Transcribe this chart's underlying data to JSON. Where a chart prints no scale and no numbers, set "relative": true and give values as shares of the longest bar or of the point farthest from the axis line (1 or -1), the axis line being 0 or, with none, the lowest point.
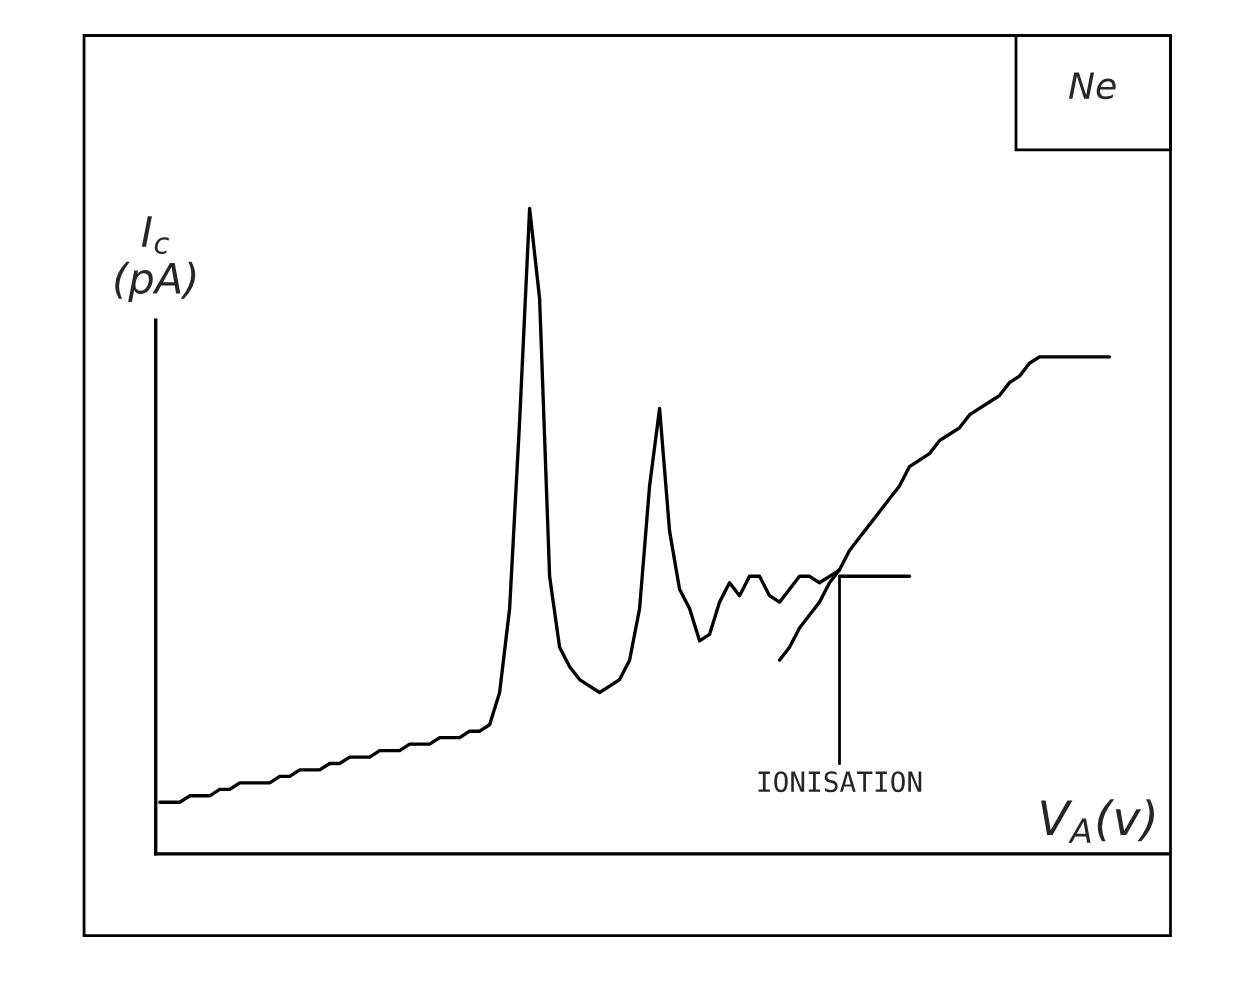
{
  "chart_data": {
    "type": "line",
    "title": "Ne",
    "xlabel": "V$_{A}$(v)",
    "ylabel": "I$_{c}$\n(pA)",
    "relative": true,
    "grid": false,
    "legend": false,
    "marker": "none",
    "line_style": "solid",
    "categories": [
      null,
      null,
      null,
      null,
      null,
      null,
      null,
      null,
      null,
      null,
      null,
      null,
      null,
      null,
      null,
      null,
      null,
      null,
      null,
      null,
      null,
      null,
      null,
      null,
      null,
      null,
      null,
      null,
      null,
      null,
      null,
      null,
      null,
      null,
      null,
      null,
      null,
      null,
      null,
      null,
      null,
      null,
      null,
      null,
      null,
      null,
      null,
      null,
      null,
      null,
      null,
      null,
      null,
      null,
      null,
      null,
      null,
      null,
      null,
      null,
      null,
      null,
      null,
      null,
      null,
      null,
      null,
      null,
      null,
      null,
      null,
      null,
      null,
      null,
      null,
      null,
      null,
      null,
      null,
      null,
      null,
      null,
      null,
      null,
      null,
      null,
      null,
      null,
      null,
      null,
      null,
      null,
      null,
      null,
      null,
      null
    ],
    "series": [
      {
        "color": "#000000",
        "values": [
          0.08,
          0.08,
          0.08,
          0.09,
          0.09,
          0.09,
          0.1,
          0.1,
          0.11,
          0.11,
          0.11,
          0.11,
          0.12,
          0.12,
          0.13,
          0.13,
          0.13,
          0.14,
          0.14,
          0.15,
          0.15,
          0.15,
          0.16,
          0.16,
          0.16,
          0.17,
          0.17,
          0.17,
          0.18,
          0.18,
          0.18,
          0.19,
          0.19,
          0.2,
          0.25,
          0.38,
          0.67,
          1,
          0.86,
          0.43,
          0.32,
          0.29,
          0.27,
          0.26,
          0.25,
          0.26,
          0.27,
          0.3,
          0.38,
          0.57,
          0.69,
          0.5,
          0.41,
          0.38,
          0.33,
          0.34,
          0.39,
          0.42,
          0.4,
          0.43,
          0.43,
          0.4,
          0.39,
          0.41,
          0.43,
          0.43,
          0.42,
          0.43,
          0.44,
          0.47,
          0.49,
          0.51,
          0.53,
          0.55,
          0.57,
          0.6,
          0.61,
          0.62,
          0.64,
          0.65,
          0.66,
          0.68,
          0.69,
          0.7,
          0.71,
          0.73,
          0.74,
          0.76,
          0.77,
          0.77,
          0.77,
          0.77,
          0.77,
          0.77,
          0.77,
          0.77
        ]
      },
      {
        "color": "#000000",
        "values": [
          null,
          null,
          null,
          null,
          null,
          null,
          null,
          null,
          null,
          null,
          null,
          null,
          null,
          null,
          null,
          null,
          null,
          null,
          null,
          null,
          null,
          null,
          null,
          null,
          null,
          null,
          null,
          null,
          null,
          null,
          null,
          null,
          null,
          null,
          null,
          null,
          null,
          null,
          null,
          null,
          null,
          null,
          null,
          null,
          null,
          null,
          null,
          null,
          null,
          null,
          null,
          null,
          null,
          null,
          null,
          null,
          null,
          null,
          null,
          null,
          null,
          null,
          0.3,
          0.32,
          0.35,
          0.37,
          0.39,
          0.42,
          0.44,
          null,
          null,
          null,
          null,
          null,
          null,
          null,
          null,
          null,
          null,
          null,
          null,
          null,
          null,
          null,
          null,
          null,
          null,
          null,
          null,
          null,
          null,
          null,
          null,
          null,
          null,
          null
        ]
      },
      {
        "color": "#000000",
        "values": [
          null,
          null,
          null,
          null,
          null,
          null,
          null,
          null,
          null,
          null,
          null,
          null,
          null,
          null,
          null,
          null,
          null,
          null,
          null,
          null,
          null,
          null,
          null,
          null,
          null,
          null,
          null,
          null,
          null,
          null,
          null,
          null,
          null,
          null,
          null,
          null,
          null,
          null,
          null,
          null,
          null,
          null,
          null,
          null,
          null,
          null,
          null,
          null,
          null,
          null,
          null,
          null,
          null,
          null,
          null,
          null,
          null,
          null,
          null,
          null,
          null,
          null,
          null,
          null,
          null,
          null,
          null,
          null,
          0.43,
          0.43,
          0.43,
          0.43,
          0.43,
          0.43,
          0.43,
          0.43,
          null,
          null,
          null,
          null,
          null,
          null,
          null,
          null,
          null,
          null,
          null,
          null,
          null,
          null,
          null,
          null,
          null,
          null,
          null,
          null
        ]
      }
    ],
    "annotations": [
      "IONISATION"
    ]
  }
}
